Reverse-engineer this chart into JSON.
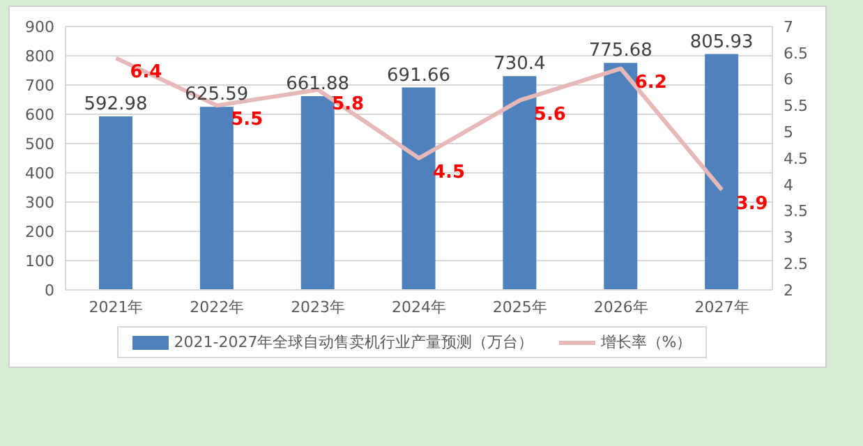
{
  "chart_data": {
    "type": "bar",
    "categories": [
      "2021年",
      "2022年",
      "2023年",
      "2024年",
      "2025年",
      "2026年",
      "2027年"
    ],
    "series": [
      {
        "name": "2021-2027年全球自动售卖机行业产量预测（万台）",
        "color": "#4f81bd",
        "values": [
          592.98,
          625.59,
          661.88,
          691.66,
          730.4,
          775.68,
          805.93
        ]
      },
      {
        "name": "增长率（%）",
        "type": "line",
        "axis": "y2",
        "color": "#e6b9b8",
        "values": [
          6.4,
          5.5,
          5.8,
          4.5,
          5.6,
          6.2,
          3.9
        ]
      }
    ],
    "ylim": [
      0,
      900
    ],
    "yticks": [
      0,
      100,
      200,
      300,
      400,
      500,
      600,
      700,
      800,
      900
    ],
    "y2lim": [
      2,
      7
    ],
    "y2ticks": [
      2,
      2.5,
      3,
      3.5,
      4,
      4.5,
      5,
      5.5,
      6,
      6.5,
      7
    ],
    "grid": "y",
    "legend": "bottom",
    "data_labels": true,
    "marker": "none",
    "line_style": "solid"
  }
}
